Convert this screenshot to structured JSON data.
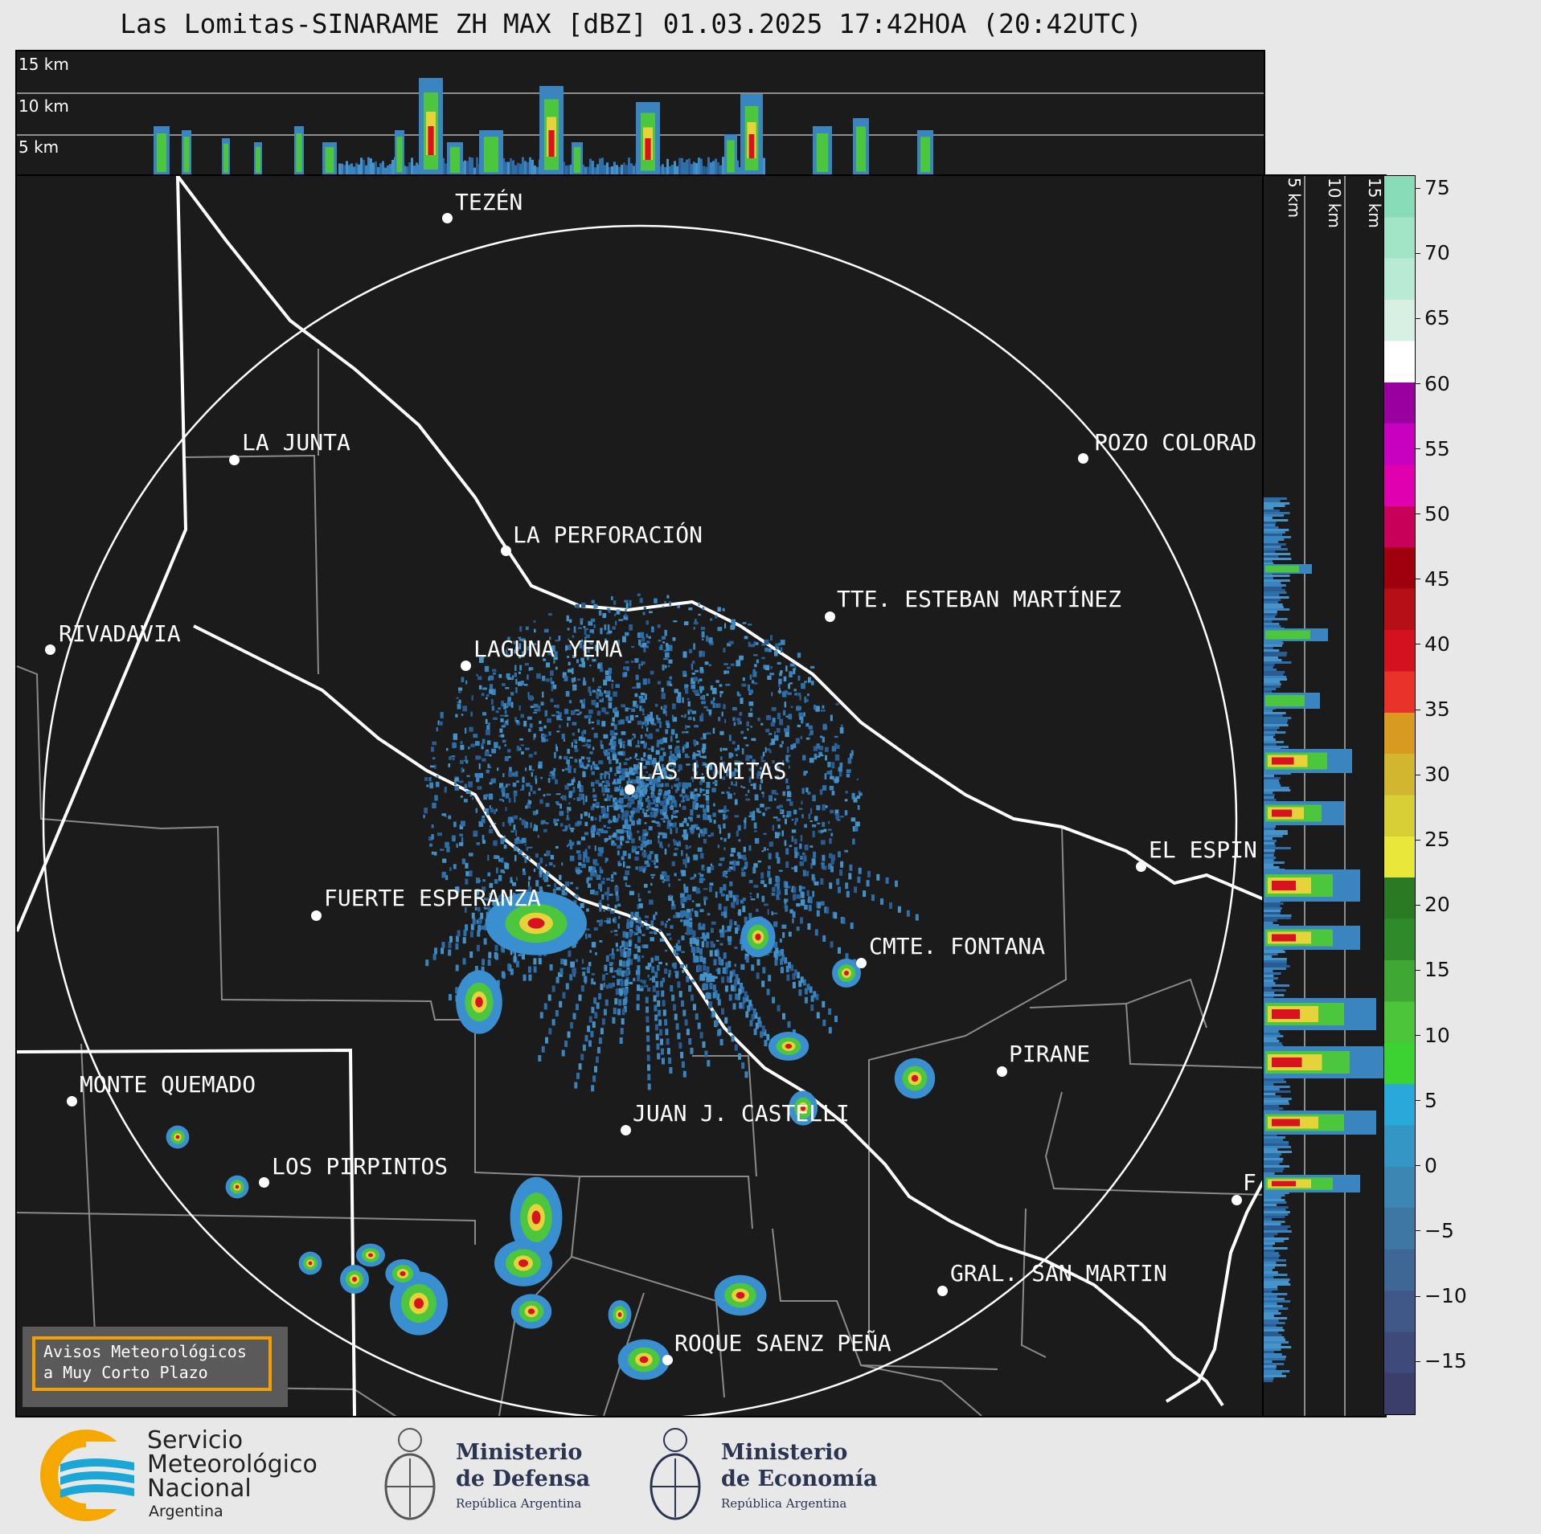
{
  "title": "Las Lomitas-SINARAME ZH MAX [dBZ] 01.03.2025 17:42HOA (20:42UTC)",
  "top_panel": {
    "height_labels": [
      "15 km",
      "10 km",
      "5 km"
    ]
  },
  "side_panel": {
    "height_labels": [
      "5 km",
      "10 km",
      "15 km"
    ]
  },
  "colorbar": {
    "ticks": [
      "75",
      "70",
      "65",
      "60",
      "55",
      "50",
      "45",
      "40",
      "35",
      "30",
      "25",
      "20",
      "15",
      "10",
      "5",
      "0",
      "−5",
      "−10",
      "−15"
    ],
    "range": [
      -19,
      76
    ],
    "colors": [
      "#3b3e6b",
      "#3e4a7a",
      "#3f5888",
      "#3f6796",
      "#3f77a4",
      "#3b86b2",
      "#3496c4",
      "#29a8da",
      "#3cd332",
      "#4dc53a",
      "#3fa734",
      "#2f8a2a",
      "#2a7a24",
      "#e9e83a",
      "#d8cf36",
      "#d2b62f",
      "#d99a22",
      "#e8322a",
      "#d4121f",
      "#b60f18",
      "#a0000e",
      "#c8005a",
      "#e000b0",
      "#c800c0",
      "#9a00a0",
      "#ffffff",
      "#d8f0e4",
      "#b8ead4",
      "#a2e4c6",
      "#88dcb8"
    ]
  },
  "cities": [
    {
      "name": "TEZÉN"
    },
    {
      "name": "LA JUNTA"
    },
    {
      "name": "POZO COLORAD"
    },
    {
      "name": "LA PERFORACIÓN"
    },
    {
      "name": "TTE. ESTEBAN MARTÍNEZ"
    },
    {
      "name": "RIVADAVIA"
    },
    {
      "name": "LAGUNA YEMA"
    },
    {
      "name": "LAS LOMITAS"
    },
    {
      "name": "EL ESPIN"
    },
    {
      "name": "FUERTE ESPERANZA"
    },
    {
      "name": "CMTE. FONTANA"
    },
    {
      "name": "PIRANE"
    },
    {
      "name": "MONTE QUEMADO"
    },
    {
      "name": "JUAN J. CASTELLI"
    },
    {
      "name": "LOS PIRPINTOS"
    },
    {
      "name": "GRAL. SAN MARTIN"
    },
    {
      "name": "ROQUE SAENZ PEÑA"
    },
    {
      "name": "F"
    }
  ],
  "warning_box": {
    "line1": "Avisos Meteorológicos",
    "line2": "a Muy Corto Plazo"
  },
  "footer": {
    "smn": {
      "line1": "Servicio",
      "line2": "Meteorológico",
      "line3": "Nacional",
      "line4": "Argentina"
    },
    "defensa": {
      "line1": "Ministerio",
      "line2": "de Defensa",
      "sub": "República Argentina"
    },
    "economia": {
      "line1": "Ministerio",
      "line2": "de Economía",
      "sub": "República Argentina"
    }
  }
}
